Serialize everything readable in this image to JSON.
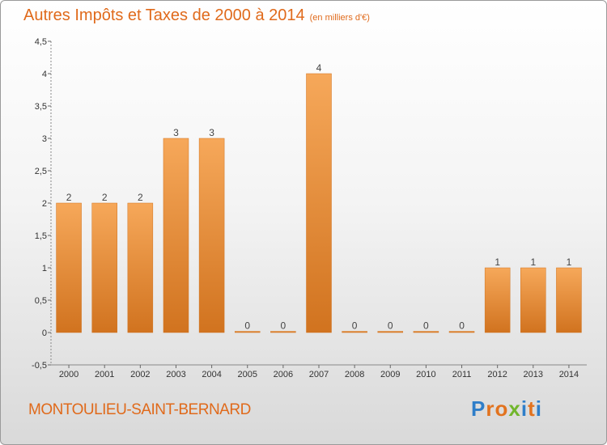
{
  "title": "Autres Impôts et Taxes de 2000 à 2014",
  "unit_note": "(en milliers d'€)",
  "commune": "MONTOULIEU-SAINT-BERNARD",
  "brand": {
    "letters": [
      "P",
      "r",
      "o",
      "x",
      "i",
      "t",
      "i"
    ]
  },
  "colors": {
    "title": "#e06a1b",
    "bar_light": "#f6a85a",
    "bar_dark": "#d1731f",
    "brand": [
      "#2f7ec9",
      "#e2731f",
      "#e2731f",
      "#71b62c",
      "#2f7ec9",
      "#e2731f",
      "#2f7ec9"
    ]
  },
  "chart_data": {
    "type": "bar",
    "title": "Autres Impôts et Taxes de 2000 à 2014",
    "subtitle": "(en milliers d'€)",
    "categories": [
      "2000",
      "2001",
      "2002",
      "2003",
      "2004",
      "2005",
      "2006",
      "2007",
      "2008",
      "2009",
      "2010",
      "2011",
      "2012",
      "2013",
      "2014"
    ],
    "values": [
      2,
      2,
      2,
      3,
      3,
      0,
      0,
      4,
      0,
      0,
      0,
      0,
      1,
      1,
      1
    ],
    "data_labels": [
      "2",
      "2",
      "2",
      "3",
      "3",
      "0",
      "0",
      "4",
      "0",
      "0",
      "0",
      "0",
      "1",
      "1",
      "1"
    ],
    "yticks": [
      -0.5,
      0,
      0.5,
      1,
      1.5,
      2,
      2.5,
      3,
      3.5,
      4,
      4.5
    ],
    "ytick_labels": [
      "-0,5",
      "0",
      "0,5",
      "1",
      "1,5",
      "2",
      "2,5",
      "3",
      "3,5",
      "4",
      "4,5"
    ],
    "ylim": [
      -0.5,
      4.5
    ],
    "xlabel": "",
    "ylabel": "",
    "grid": false,
    "legend": false
  }
}
